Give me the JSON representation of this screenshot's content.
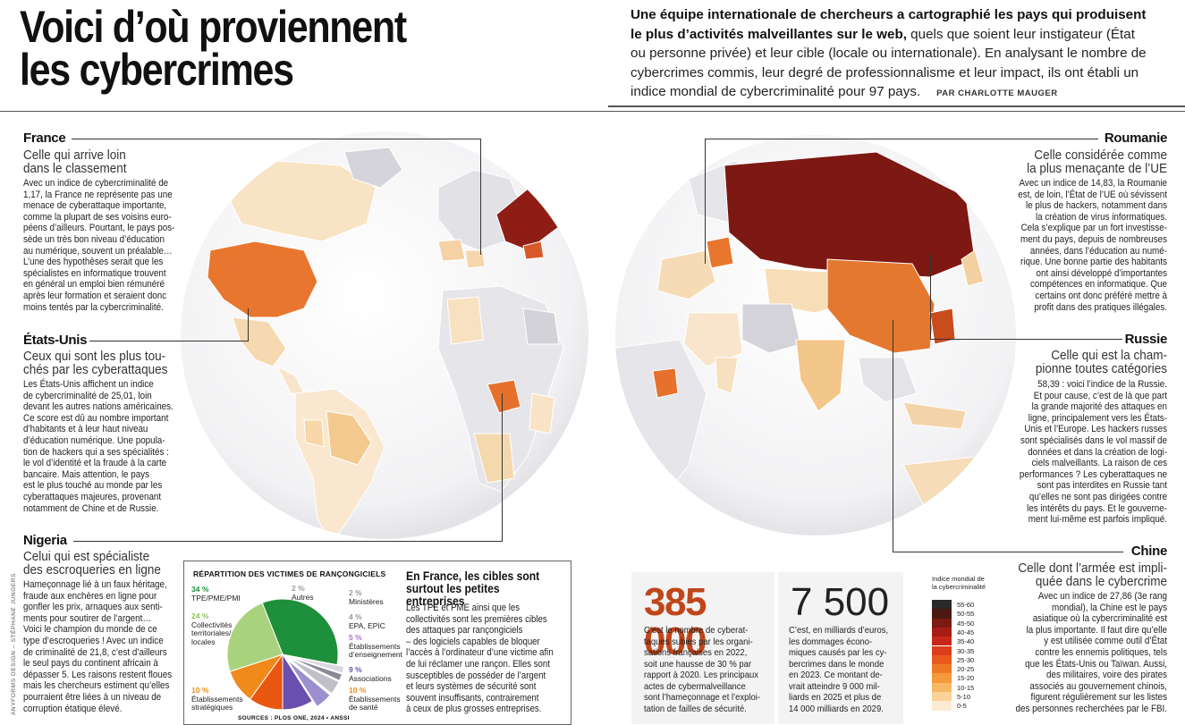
{
  "header": {
    "title_line1": "Voici d’où proviennent",
    "title_line2": "les cybercrimes",
    "intro_bold": "Une équipe internationale de chercheurs a cartographié les pays qui produisent le plus d’activités malveillantes sur le web,",
    "intro_rest": " quels que soient leur instigateur (État ou personne privée) et leur cible (locale ou internationale). En analysant le nombre de cybercrimes commis, leur degré de professionnalisme et leur impact, ils ont établi un indice mondial de cybercriminalité pour 97 pays.",
    "byline": "PAR CHARLOTTE MAUGER"
  },
  "countries": {
    "france": {
      "name": "France",
      "subtitle_1": "Celle qui arrive loin",
      "subtitle_2": "dans le classement",
      "body": [
        "Avec un indice de cybercriminalité de",
        "1,17, la France ne représente pas une",
        "menace de cyberattaque importante,",
        "comme la plupart de ses voisins euro-",
        "péens d’ailleurs. Pourtant, le pays pos-",
        "sède un très bon niveau d’éducation",
        "au numérique, souvent un préalable…",
        "L’une des hypothèses serait que les",
        "spécialistes en informatique trouvent",
        "en général un emploi bien rémunéré",
        "après leur formation et seraient donc",
        "moins tentés par la cybercriminalité."
      ]
    },
    "usa": {
      "name": "États-Unis",
      "subtitle_1": "Ceux qui sont les plus tou-",
      "subtitle_2": "chés par les cyberattaques",
      "body": [
        "Les États-Unis affichent un indice",
        "de cybercriminalité de 25,01, loin",
        "devant les autres nations américaines.",
        "Ce score est dû au nombre important",
        "d’habitants et à leur haut niveau",
        "d’éducation numérique. Une popula-",
        "tion de hackers qui a ses spécialités :",
        "le vol d’identité et la fraude à la carte",
        "bancaire. Mais attention, le pays",
        "est le plus touché au monde par les",
        "cyberattaques majeures, provenant",
        "notamment de Chine et de Russie."
      ]
    },
    "nigeria": {
      "name": "Nigeria",
      "subtitle_1": "Celui qui est spécialiste",
      "subtitle_2": "des escroqueries en ligne",
      "body": [
        "Hameçonnage lié à un faux héritage,",
        "fraude aux enchères en ligne pour",
        "gonfler les prix, arnaques aux senti-",
        "ments pour soutirer de l’argent…",
        "Voici le champion du monde de ce",
        "type d’escroqueries ! Avec un indice",
        "de criminalité de 21,8, c’est d’ailleurs",
        "le seul pays du continent africain à",
        "dépasser 5. Les raisons restent floues",
        "mais les chercheurs estiment qu’elles",
        "pourraient être liées à un niveau de",
        "corruption étatique élevé."
      ]
    },
    "romania": {
      "name": "Roumanie",
      "subtitle_1": "Celle considérée comme",
      "subtitle_2": "la plus menaçante de l’UE",
      "body": [
        "Avec un indice de 14,83, la Roumanie",
        "est, de loin, l’État de l’UE où sévissent",
        "le plus de hackers, notamment dans",
        "la création de virus informatiques.",
        "Cela s’explique par un fort investisse-",
        "ment du pays, depuis de nombreuses",
        "années, dans l’éducation au numé-",
        "rique. Une bonne partie des habitants",
        "ont ainsi développé d’importantes",
        "compétences en informatique. Que",
        "certains ont donc préféré mettre à",
        "profit dans des pratiques illégales."
      ]
    },
    "russia": {
      "name": "Russie",
      "subtitle_1": "Celle qui est la cham-",
      "subtitle_2": "pionne toutes catégories",
      "body": [
        "58,39 : voici l’indice de la Russie.",
        "Et pour cause, c’est de là que part",
        "la grande majorité des attaques en",
        "ligne, principalement vers les États-",
        "Unis et l’Europe. Les hackers russes",
        "sont spécialisés dans le vol massif de",
        "données et dans la création de logi-",
        "ciels malveillants. La raison de ces",
        "performances ? Les cyberattaques ne",
        "sont pas interdites en Russie tant",
        "qu’elles ne sont pas dirigées contre",
        "les intérêts du pays. Et le gouverne-",
        "ment lui-même est parfois impliqué."
      ]
    },
    "china": {
      "name": "Chine",
      "subtitle_1": "Celle dont l’armée est impli-",
      "subtitle_2": "quée dans le cybercrime",
      "body": [
        "Avec un indice de 27,86 (3e rang",
        "mondial), la Chine est le pays",
        "asiatique où la cybercriminalité est",
        "la plus importante. Il faut dire qu’elle",
        "y est utilisée comme outil d’État",
        "contre les ennemis politiques, tels",
        "que les États-Unis ou Taïwan. Aussi,",
        "des militaires, voire des pirates",
        "associés au gouvernement chinois,",
        "figurent régulièrement sur les listes",
        "des personnes recherchées par le FBI."
      ]
    }
  },
  "ransomware": {
    "title": "RÉPARTITION DES VICTIMES DE RANÇONGICIELS",
    "source": "SOURCES : PLOS ONE, 2024 • ANSSI",
    "chart_data": {
      "type": "pie",
      "title": "RÉPARTITION DES VICTIMES DE RANÇONGICIELS",
      "categories": [
        "TPE/PME/PMI",
        "Collectivités territoriales/ locales",
        "Établissements stratégiques",
        "Établissements de santé",
        "Associations",
        "Établissements d’enseignement",
        "EPA, EPIC",
        "Ministères",
        "Autres"
      ],
      "values": [
        34,
        24,
        10,
        10,
        9,
        5,
        4,
        2,
        2
      ],
      "labels": [
        "34 %",
        "24 %",
        "10 %",
        "10 %",
        "9 %",
        "5 %",
        "4 %",
        "2 %",
        "2 %"
      ],
      "colors": [
        "#1e8f3a",
        "#a9d27f",
        "#f08a1a",
        "#e8560f",
        "#6a4fb0",
        "#9b8fd0",
        "#bfbfc8",
        "#8a8a96",
        "#d8d8de"
      ]
    },
    "sme_head": "En France, les cibles sont surtout les petites entreprises",
    "sme_body": [
      "Les TPE et PME ainsi que les",
      "collectivités sont les premières cibles",
      "des attaques par rançongiciels",
      "– des logiciels capables de bloquer",
      "l’accès à l’ordinateur d’une victime afin",
      "de lui réclamer une rançon. Elles sont",
      "susceptibles de posséder de l’argent",
      "et leurs systèmes de sécurité sont",
      "souvent insuffisants, contrairement",
      "à ceux de plus grosses entreprises."
    ]
  },
  "stats": {
    "stat1": {
      "number": "385 000",
      "color": "#c0461a",
      "text": [
        "C’est le nombre de cyberat-",
        "taques subies par les organi-",
        "sations françaises en 2022,",
        "soit une hausse de 30 % par",
        "rapport à 2020. Les principaux",
        "actes de cybermalveillance",
        "sont l’hameçonnage et l’exploi-",
        "tation de failles de sécurité."
      ]
    },
    "stat2": {
      "number": "7 500",
      "color": "#222222",
      "text": [
        "C’est, en milliards d’euros,",
        "les dommages écono-",
        "miques causés par les cy-",
        "bercrimes dans le monde",
        "en 2023. Ce montant de-",
        "vrait atteindre 9 000 mil-",
        "liards en 2025 et plus de",
        "14 000 milliards en 2029."
      ]
    }
  },
  "legend": {
    "title_1": "Indice mondial de",
    "title_2": "la cybercriminalité",
    "ranges": [
      "55-60",
      "50-55",
      "45-50",
      "40-45",
      "35-40",
      "30-35",
      "25-30",
      "20-25",
      "15-20",
      "10-15",
      "5-10",
      "0-5"
    ],
    "colors": [
      "#2a2a2a",
      "#4a1a12",
      "#7a1a12",
      "#a51d14",
      "#c8281a",
      "#dd3d1c",
      "#e85a1e",
      "#ef7a25",
      "#f49a3a",
      "#f7b865",
      "#fad29a",
      "#fcebd2"
    ]
  },
  "credit": "ANYFORMS DESIGN – STÉPHANE JUNGERS"
}
